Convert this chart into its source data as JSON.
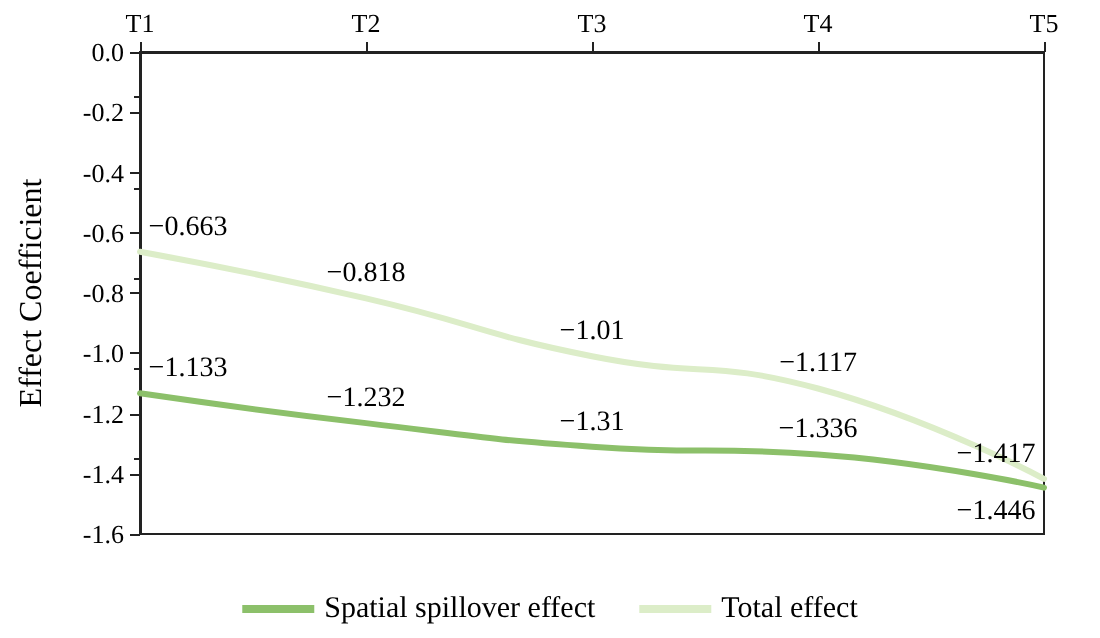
{
  "chart_data": {
    "type": "line",
    "ylabel": "Effect Coefficient",
    "categories": [
      "T1",
      "T2",
      "T3",
      "T4",
      "T5"
    ],
    "series": [
      {
        "name": "Spatial spillover effect",
        "color": "#8cc06a",
        "values": [
          -1.133,
          -1.232,
          -1.31,
          -1.336,
          -1.446
        ]
      },
      {
        "name": "Total effect",
        "color": "#dcedc8",
        "values": [
          -0.663,
          -0.818,
          -1.01,
          -1.117,
          -1.417
        ]
      }
    ],
    "ylim": [
      -1.6,
      0
    ],
    "yticks": [
      {
        "value": -1.6,
        "label": "-1.6"
      },
      {
        "value": -1.4,
        "label": "-1.4"
      },
      {
        "value": -1.2,
        "label": "-1.2"
      },
      {
        "value": -1,
        "label": "-1.0"
      },
      {
        "value": -0.8,
        "label": "-0.8"
      },
      {
        "value": -0.6,
        "label": "-0.6"
      },
      {
        "value": -0.4,
        "label": "-0.4"
      },
      {
        "value": -0.2,
        "label": "-0.2"
      },
      {
        "value": 0,
        "label": "0.0"
      }
    ],
    "data_labels": true,
    "legend": "bottom",
    "grid": false,
    "marker": "none",
    "line_style": "solid"
  }
}
